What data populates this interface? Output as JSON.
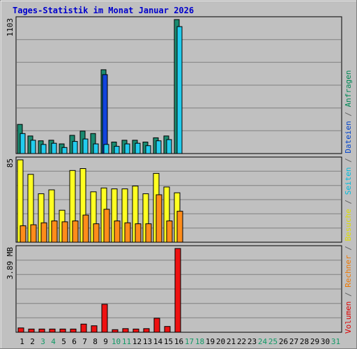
{
  "title": "Tages-Statistik im Monat Januar 2026",
  "legend": [
    {
      "text": "Volumen",
      "color": "#dd0000"
    },
    {
      "text": " / ",
      "color": "#606060"
    },
    {
      "text": "Rechner",
      "color": "#ee7700"
    },
    {
      "text": " / ",
      "color": "#606060"
    },
    {
      "text": "Besuche",
      "color": "#dddd00"
    },
    {
      "text": " / ",
      "color": "#606060"
    },
    {
      "text": "Seiten",
      "color": "#00bbdd"
    },
    {
      "text": " / ",
      "color": "#606060"
    },
    {
      "text": "Dateien",
      "color": "#0044cc"
    },
    {
      "text": " / ",
      "color": "#606060"
    },
    {
      "text": "Anfragen",
      "color": "#008855"
    }
  ],
  "colors": {
    "anfragen": "#1a8a70",
    "dateien": "#1144dd",
    "seiten": "#22ccee",
    "besuche": "#ffff22",
    "rechner": "#ff8c1a",
    "volumen": "#ee1111",
    "weekday_label": "#000000",
    "weekend_label": "#119966",
    "title": "#0000cc"
  },
  "chart_data": [
    {
      "type": "bar",
      "panel": "top",
      "ymax_label": "1103",
      "ylim": [
        0,
        1103
      ],
      "categories": [
        "1",
        "2",
        "3",
        "4",
        "5",
        "6",
        "7",
        "8",
        "9",
        "10",
        "11",
        "12",
        "13",
        "14",
        "15",
        "16",
        "17",
        "18",
        "19",
        "20",
        "21",
        "22",
        "23",
        "24",
        "25",
        "26",
        "27",
        "28",
        "29",
        "30",
        "31"
      ],
      "series": [
        {
          "name": "Anfragen",
          "values": [
            240,
            145,
            105,
            110,
            80,
            150,
            185,
            165,
            690,
            95,
            110,
            110,
            95,
            130,
            145,
            1103,
            0,
            0,
            0,
            0,
            0,
            0,
            0,
            0,
            0,
            0,
            0,
            0,
            0,
            0,
            0
          ]
        },
        {
          "name": "Dateien",
          "values": [
            0,
            0,
            0,
            0,
            0,
            0,
            0,
            0,
            650,
            0,
            0,
            0,
            0,
            0,
            0,
            0,
            0,
            0,
            0,
            0,
            0,
            0,
            0,
            0,
            0,
            0,
            0,
            0,
            0,
            0,
            0
          ]
        },
        {
          "name": "Seiten",
          "values": [
            165,
            110,
            75,
            85,
            50,
            100,
            120,
            80,
            75,
            60,
            80,
            85,
            65,
            105,
            115,
            1045,
            0,
            0,
            0,
            0,
            0,
            0,
            0,
            0,
            0,
            0,
            0,
            0,
            0,
            0,
            0
          ]
        }
      ]
    },
    {
      "type": "bar",
      "panel": "middle",
      "ymax_label": "85",
      "ylim": [
        0,
        85
      ],
      "categories": [
        "1",
        "2",
        "3",
        "4",
        "5",
        "6",
        "7",
        "8",
        "9",
        "10",
        "11",
        "12",
        "13",
        "14",
        "15",
        "16",
        "17",
        "18",
        "19",
        "20",
        "21",
        "22",
        "23",
        "24",
        "25",
        "26",
        "27",
        "28",
        "29",
        "30",
        "31"
      ],
      "series": [
        {
          "name": "Besuche",
          "values": [
            85,
            70,
            50,
            54,
            33,
            74,
            76,
            52,
            56,
            55,
            55,
            58,
            50,
            71,
            57,
            51,
            0,
            0,
            0,
            0,
            0,
            0,
            0,
            0,
            0,
            0,
            0,
            0,
            0,
            0,
            0
          ]
        },
        {
          "name": "Rechner",
          "values": [
            17,
            18,
            20,
            22,
            21,
            22,
            28,
            19,
            34,
            22,
            20,
            19,
            19,
            49,
            22,
            32,
            0,
            0,
            0,
            0,
            0,
            0,
            0,
            0,
            0,
            0,
            0,
            0,
            0,
            0,
            0
          ]
        }
      ]
    },
    {
      "type": "bar",
      "panel": "bottom",
      "ymax_label": "3.89 MB",
      "ylim": [
        0,
        3.89
      ],
      "categories": [
        "1",
        "2",
        "3",
        "4",
        "5",
        "6",
        "7",
        "8",
        "9",
        "10",
        "11",
        "12",
        "13",
        "14",
        "15",
        "16",
        "17",
        "18",
        "19",
        "20",
        "21",
        "22",
        "23",
        "24",
        "25",
        "26",
        "27",
        "28",
        "29",
        "30",
        "31"
      ],
      "series": [
        {
          "name": "Volumen",
          "values": [
            0.2,
            0.15,
            0.15,
            0.15,
            0.15,
            0.15,
            0.38,
            0.3,
            1.3,
            0.12,
            0.17,
            0.15,
            0.17,
            0.65,
            0.27,
            3.89,
            0,
            0,
            0,
            0,
            0,
            0,
            0,
            0,
            0,
            0,
            0,
            0,
            0,
            0,
            0
          ]
        }
      ]
    }
  ],
  "weekend_days": [
    "3",
    "4",
    "10",
    "11",
    "17",
    "18",
    "24",
    "25",
    "31"
  ]
}
